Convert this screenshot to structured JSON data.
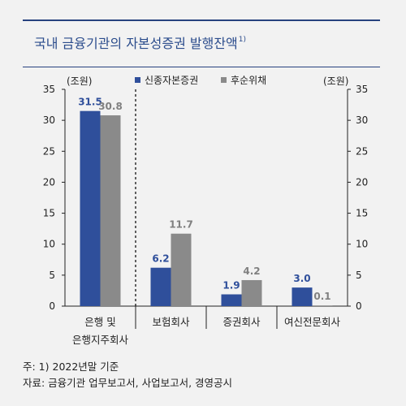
{
  "title": "국내 금융기관의 자본성증권 발행잔액",
  "title_sup": "1)",
  "unit_left": "(조원)",
  "unit_right": "(조원)",
  "notes": [
    "주: 1) 2022년말 기준",
    "자료: 금융기관 업무보고서, 사업보고서, 경영공시"
  ],
  "colors": {
    "series1": "#2f4f9b",
    "series2": "#8a8a8a",
    "series1_label": "#2f4f9b",
    "series2_label": "#808080",
    "accent": "#27427f"
  },
  "chart_data": {
    "type": "bar",
    "categories": [
      "은행 및|은행지주회사",
      "보험회사",
      "증권회사",
      "여신전문회사"
    ],
    "series": [
      {
        "name": "신종자본증권",
        "values": [
          31.5,
          6.2,
          1.9,
          3.0
        ]
      },
      {
        "name": "후순위채",
        "values": [
          30.8,
          11.7,
          4.2,
          0.1
        ]
      }
    ],
    "data_labels": [
      [
        "31.5",
        "6.2",
        "1.9",
        "3.0"
      ],
      [
        "30.8",
        "11.7",
        "4.2",
        "0.1"
      ]
    ],
    "ylim": [
      0,
      35
    ],
    "yticks": [
      0,
      5,
      10,
      15,
      20,
      25,
      30,
      35
    ],
    "legend_position": "top-center",
    "grid": false
  }
}
